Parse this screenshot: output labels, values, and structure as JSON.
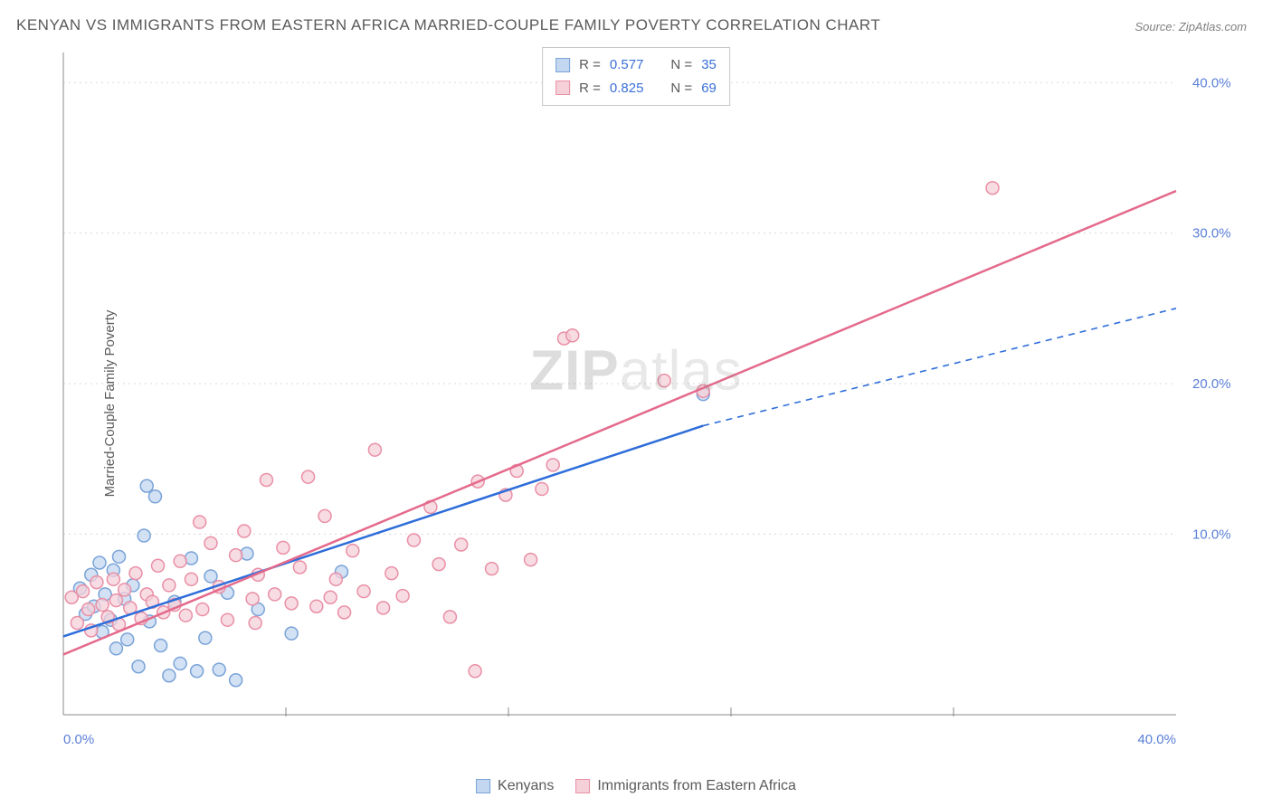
{
  "title": "KENYAN VS IMMIGRANTS FROM EASTERN AFRICA MARRIED-COUPLE FAMILY POVERTY CORRELATION CHART",
  "source": "Source: ZipAtlas.com",
  "y_axis_label": "Married-Couple Family Poverty",
  "watermark": {
    "bold": "ZIP",
    "light": "atlas"
  },
  "chart": {
    "type": "scatter",
    "xlim": [
      0,
      40
    ],
    "ylim": [
      -2,
      42
    ],
    "x_ticks": [
      0,
      40
    ],
    "x_tick_labels": [
      "0.0%",
      "40.0%"
    ],
    "y_ticks": [
      10,
      20,
      30,
      40
    ],
    "y_tick_labels": [
      "10.0%",
      "20.0%",
      "30.0%",
      "40.0%"
    ],
    "x_minor_grid": [
      8,
      16,
      24,
      32
    ],
    "grid_color": "#d8d8d8",
    "background_color": "#ffffff",
    "axis_color": "#888888",
    "tick_label_color": "#5a7fd8",
    "marker_radius": 7,
    "marker_stroke_width": 1.5,
    "line_width": 2.5,
    "series": [
      {
        "name": "Kenyans",
        "fill": "#c3d7f0",
        "stroke": "#7aa3d8",
        "line_color": "#2e6dd9",
        "R": "0.577",
        "N": "35",
        "trend": {
          "x1": 0,
          "y1": 3.2,
          "x2": 23,
          "y2": 17.2,
          "extend_to_x": 40,
          "extend_y": 25.0
        },
        "points": [
          [
            0.6,
            6.4
          ],
          [
            0.8,
            4.7
          ],
          [
            1.0,
            7.3
          ],
          [
            1.1,
            5.2
          ],
          [
            1.3,
            8.1
          ],
          [
            1.4,
            3.5
          ],
          [
            1.5,
            6.0
          ],
          [
            1.7,
            4.3
          ],
          [
            1.8,
            7.6
          ],
          [
            1.9,
            2.4
          ],
          [
            2.0,
            8.5
          ],
          [
            2.2,
            5.7
          ],
          [
            2.3,
            3.0
          ],
          [
            2.5,
            6.6
          ],
          [
            2.7,
            1.2
          ],
          [
            2.9,
            9.9
          ],
          [
            3.0,
            13.2
          ],
          [
            3.1,
            4.2
          ],
          [
            3.3,
            12.5
          ],
          [
            3.5,
            2.6
          ],
          [
            3.8,
            0.6
          ],
          [
            4.0,
            5.5
          ],
          [
            4.2,
            1.4
          ],
          [
            4.6,
            8.4
          ],
          [
            4.8,
            0.9
          ],
          [
            5.1,
            3.1
          ],
          [
            5.3,
            7.2
          ],
          [
            5.6,
            1.0
          ],
          [
            5.9,
            6.1
          ],
          [
            6.2,
            0.3
          ],
          [
            6.6,
            8.7
          ],
          [
            7.0,
            5.0
          ],
          [
            8.2,
            3.4
          ],
          [
            10.0,
            7.5
          ],
          [
            23.0,
            19.3
          ]
        ]
      },
      {
        "name": "Immigrants from Eastern Africa",
        "fill": "#f6d0d9",
        "stroke": "#e98fa6",
        "line_color": "#e46a8b",
        "R": "0.825",
        "N": "69",
        "trend": {
          "x1": 0,
          "y1": 2.0,
          "x2": 40,
          "y2": 32.8
        },
        "points": [
          [
            0.3,
            5.8
          ],
          [
            0.5,
            4.1
          ],
          [
            0.7,
            6.2
          ],
          [
            0.9,
            5.0
          ],
          [
            1.0,
            3.6
          ],
          [
            1.2,
            6.8
          ],
          [
            1.4,
            5.3
          ],
          [
            1.6,
            4.5
          ],
          [
            1.8,
            7.0
          ],
          [
            1.9,
            5.6
          ],
          [
            2.0,
            4.0
          ],
          [
            2.2,
            6.3
          ],
          [
            2.4,
            5.1
          ],
          [
            2.6,
            7.4
          ],
          [
            2.8,
            4.4
          ],
          [
            3.0,
            6.0
          ],
          [
            3.2,
            5.5
          ],
          [
            3.4,
            7.9
          ],
          [
            3.6,
            4.8
          ],
          [
            3.8,
            6.6
          ],
          [
            4.0,
            5.3
          ],
          [
            4.2,
            8.2
          ],
          [
            4.4,
            4.6
          ],
          [
            4.6,
            7.0
          ],
          [
            4.9,
            10.8
          ],
          [
            5.0,
            5.0
          ],
          [
            5.3,
            9.4
          ],
          [
            5.6,
            6.5
          ],
          [
            5.9,
            4.3
          ],
          [
            6.2,
            8.6
          ],
          [
            6.5,
            10.2
          ],
          [
            6.8,
            5.7
          ],
          [
            7.0,
            7.3
          ],
          [
            7.3,
            13.6
          ],
          [
            7.6,
            6.0
          ],
          [
            7.9,
            9.1
          ],
          [
            8.2,
            5.4
          ],
          [
            8.5,
            7.8
          ],
          [
            8.8,
            13.8
          ],
          [
            9.1,
            5.2
          ],
          [
            9.4,
            11.2
          ],
          [
            9.8,
            7.0
          ],
          [
            10.1,
            4.8
          ],
          [
            10.4,
            8.9
          ],
          [
            10.8,
            6.2
          ],
          [
            11.2,
            15.6
          ],
          [
            11.8,
            7.4
          ],
          [
            12.2,
            5.9
          ],
          [
            12.6,
            9.6
          ],
          [
            13.2,
            11.8
          ],
          [
            13.9,
            4.5
          ],
          [
            14.3,
            9.3
          ],
          [
            14.9,
            13.5
          ],
          [
            15.4,
            7.7
          ],
          [
            15.9,
            12.6
          ],
          [
            16.3,
            14.2
          ],
          [
            16.8,
            8.3
          ],
          [
            17.2,
            13.0
          ],
          [
            17.6,
            14.6
          ],
          [
            18.0,
            23.0
          ],
          [
            18.3,
            23.2
          ],
          [
            21.6,
            20.2
          ],
          [
            23.0,
            19.5
          ],
          [
            14.8,
            0.9
          ],
          [
            33.4,
            33.0
          ],
          [
            9.6,
            5.8
          ],
          [
            11.5,
            5.1
          ],
          [
            6.9,
            4.1
          ],
          [
            13.5,
            8.0
          ]
        ]
      }
    ]
  },
  "stats_legend": {
    "r_label": "R =",
    "n_label": "N ="
  },
  "bottom_legend": {
    "items": [
      "Kenyans",
      "Immigrants from Eastern Africa"
    ]
  }
}
